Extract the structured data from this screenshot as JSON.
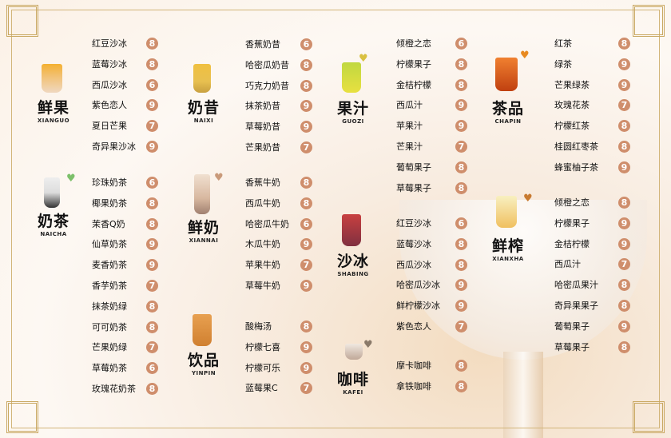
{
  "accent_color": "#cf8e6c",
  "border_color": "#d2b57a",
  "watermark": "觅知网",
  "sections": [
    {
      "id": "xianguo",
      "title": "鲜果",
      "subtitle": "XIANGUO",
      "icon": "shaved-ice-cup-icon",
      "items": [
        [
          "红豆沙冰",
          "8"
        ],
        [
          "蓝莓沙冰",
          "8"
        ],
        [
          "西瓜沙冰",
          "6"
        ],
        [
          "紫色恋人",
          "9"
        ],
        [
          "夏日芒果",
          "7"
        ],
        [
          "奇异果沙冰",
          "9"
        ]
      ]
    },
    {
      "id": "naicha",
      "title": "奶茶",
      "subtitle": "NAICHA",
      "icon": "milk-tea-cup-icon",
      "heart": "#7cc06a",
      "items": [
        [
          "珍珠奶茶",
          "6"
        ],
        [
          "椰果奶茶",
          "8"
        ],
        [
          "茉香Q奶",
          "8"
        ],
        [
          "仙草奶茶",
          "9"
        ],
        [
          "麦香奶茶",
          "9"
        ],
        [
          "香芋奶茶",
          "7"
        ],
        [
          "抹茶奶绿",
          "8"
        ],
        [
          "可可奶茶",
          "8"
        ],
        [
          "芒果奶绿",
          "7"
        ],
        [
          "草莓奶茶",
          "6"
        ],
        [
          "玫瑰花奶茶",
          "8"
        ]
      ]
    },
    {
      "id": "naixi",
      "title": "奶昔",
      "subtitle": "NAIXI",
      "icon": "milkshake-cup-icon",
      "items": [
        [
          "香蕉奶昔",
          "6"
        ],
        [
          "哈密瓜奶昔",
          "8"
        ],
        [
          "巧克力奶昔",
          "8"
        ],
        [
          "抹茶奶昔",
          "9"
        ],
        [
          "草莓奶昔",
          "9"
        ],
        [
          "芒果奶昔",
          "7"
        ]
      ]
    },
    {
      "id": "xiannai",
      "title": "鲜奶",
      "subtitle": "XIANNAI",
      "icon": "fresh-milk-glass-icon",
      "heart": "#c99a7a",
      "items": [
        [
          "香蕉牛奶",
          "8"
        ],
        [
          "西瓜牛奶",
          "8"
        ],
        [
          "哈密瓜牛奶",
          "6"
        ],
        [
          "木瓜牛奶",
          "9"
        ],
        [
          "苹果牛奶",
          "7"
        ],
        [
          "草莓牛奶",
          "9"
        ]
      ]
    },
    {
      "id": "yinpin",
      "title": "饮品",
      "subtitle": "YINPIN",
      "icon": "iced-drink-cup-icon",
      "items": [
        [
          "酸梅汤",
          "8"
        ],
        [
          "柠檬七喜",
          "9"
        ],
        [
          "柠檬可乐",
          "9"
        ],
        [
          "蓝莓果C",
          "7"
        ]
      ]
    },
    {
      "id": "guozi",
      "title": "果汁",
      "subtitle": "GUOZI",
      "icon": "juice-cup-icon",
      "heart": "#d9c040",
      "items": [
        [
          "倾橙之恋",
          "6"
        ],
        [
          "柠檬果子",
          "8"
        ],
        [
          "金桔柠檬",
          "8"
        ],
        [
          "西瓜汁",
          "9"
        ],
        [
          "苹果汁",
          "9"
        ],
        [
          "芒果汁",
          "7"
        ],
        [
          "葡萄果子",
          "8"
        ],
        [
          "草莓果子",
          "8"
        ]
      ]
    },
    {
      "id": "shabing",
      "title": "沙冰",
      "subtitle": "SHABING",
      "icon": "smoothie-cup-icon",
      "items": [
        [
          "红豆沙冰",
          "6"
        ],
        [
          "蓝莓沙冰",
          "8"
        ],
        [
          "西瓜沙冰",
          "8"
        ],
        [
          "哈密瓜沙冰",
          "9"
        ],
        [
          "鲜柠檬沙冰",
          "9"
        ],
        [
          "紫色恋人",
          "7"
        ]
      ]
    },
    {
      "id": "kafei",
      "title": "咖啡",
      "subtitle": "KAFEI",
      "icon": "coffee-cup-icon",
      "heart": "#8a7a6a",
      "items": [
        [
          "摩卡咖啡",
          "8"
        ],
        [
          "拿铁咖啡",
          "8"
        ]
      ]
    },
    {
      "id": "chapin",
      "title": "茶品",
      "subtitle": "CHAPIN",
      "icon": "iced-tea-cup-icon",
      "heart": "#e88a20",
      "items": [
        [
          "红茶",
          "8"
        ],
        [
          "绿茶",
          "9"
        ],
        [
          "芒果绿茶",
          "9"
        ],
        [
          "玫瑰花茶",
          "7"
        ],
        [
          "柠檬红茶",
          "8"
        ],
        [
          "桂圆红枣茶",
          "8"
        ],
        [
          "蜂蜜柚子茶",
          "9"
        ]
      ]
    },
    {
      "id": "xianzha",
      "title": "鲜榨",
      "subtitle": "XIANXHA",
      "icon": "fresh-juice-glass-icon",
      "heart": "#c87a30",
      "items": [
        [
          "倾橙之恋",
          "8"
        ],
        [
          "柠檬果子",
          "9"
        ],
        [
          "金桔柠檬",
          "9"
        ],
        [
          "西瓜汁",
          "7"
        ],
        [
          "哈密瓜果汁",
          "8"
        ],
        [
          "奇异果果子",
          "8"
        ],
        [
          "葡萄果子",
          "9"
        ],
        [
          "草莓果子",
          "8"
        ]
      ]
    }
  ]
}
